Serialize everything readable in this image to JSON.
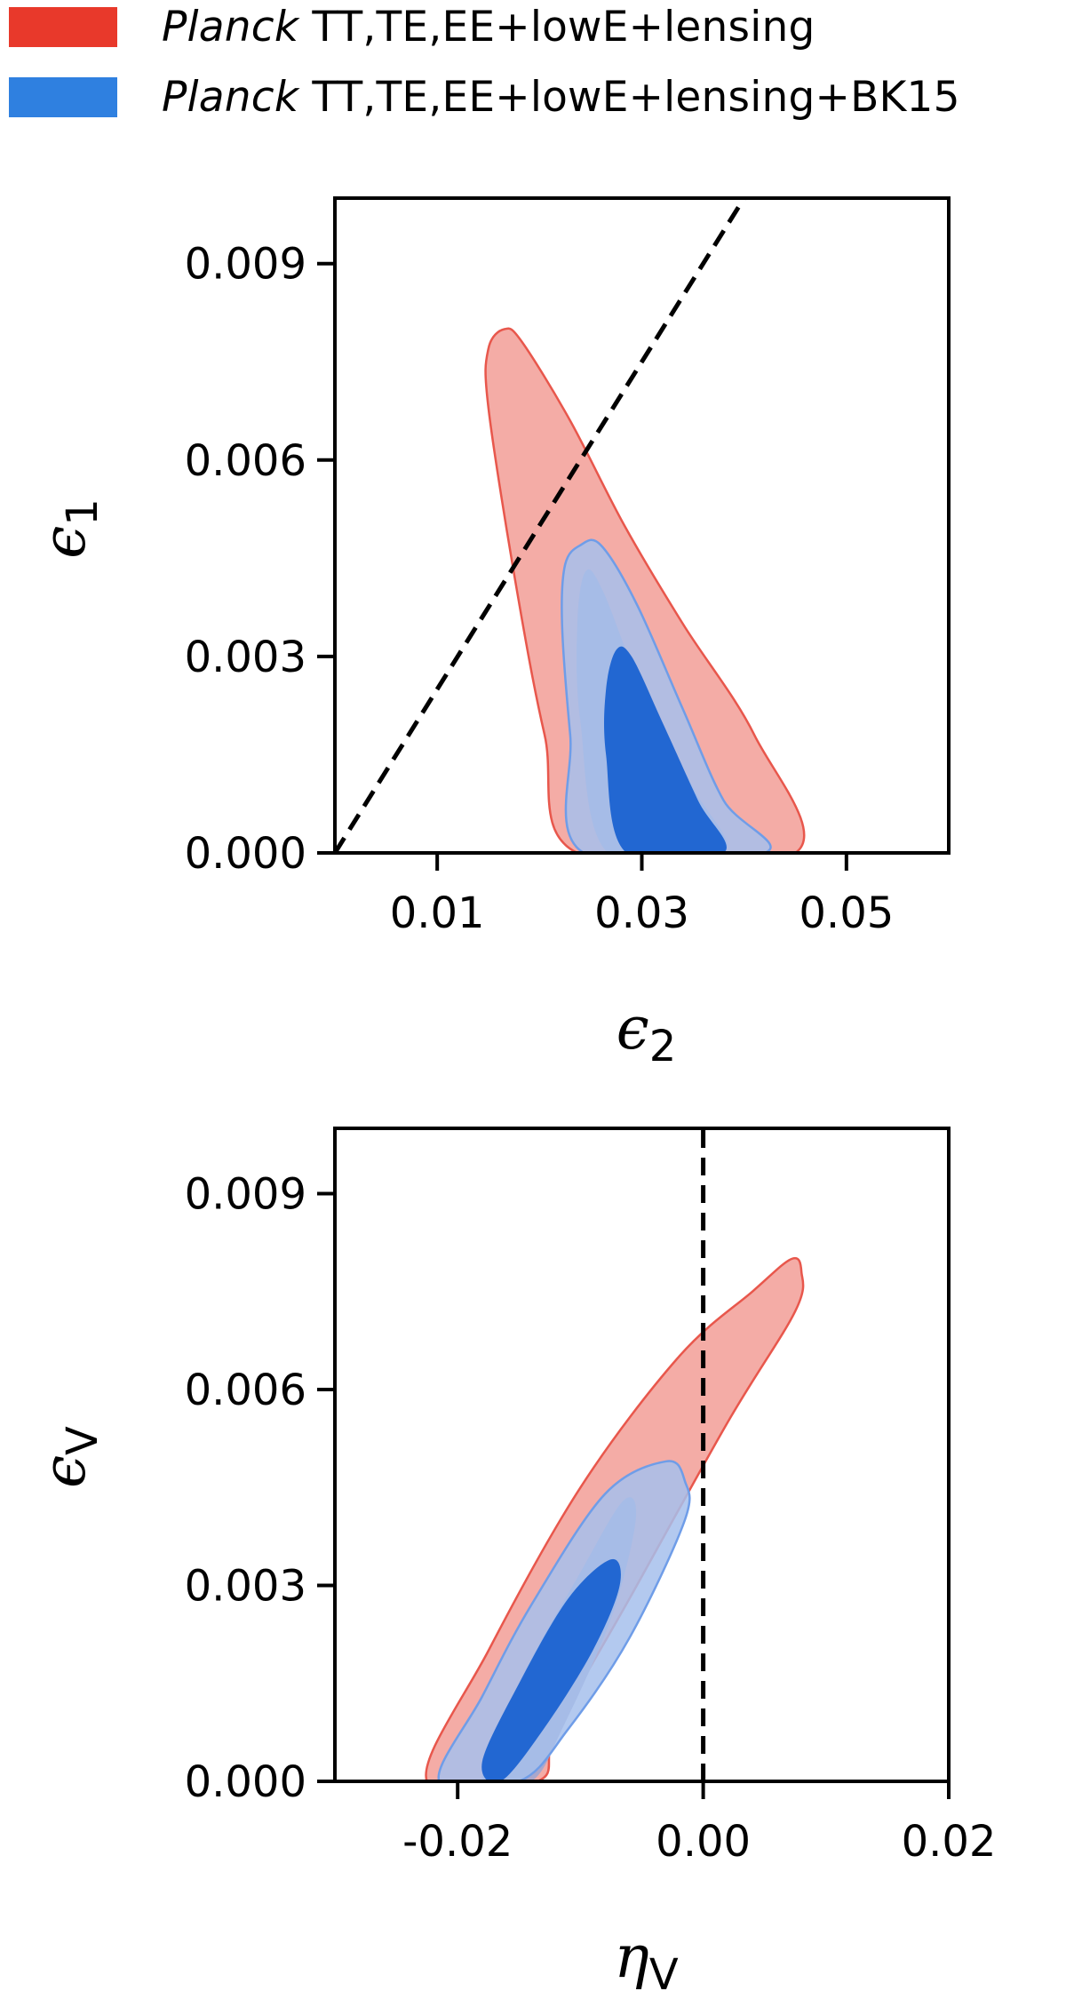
{
  "legend": {
    "items": [
      {
        "italic": "Planck",
        "text": " TT,TE,EE+lowE+lensing",
        "color": "#e8392b"
      },
      {
        "italic": "Planck",
        "text": " TT,TE,EE+lowE+lensing+BK15",
        "color": "#2f80e0"
      }
    ]
  },
  "colors": {
    "red_fill": "#f4aca6",
    "red_edge": "#e8574c",
    "blue_outer": "#a6c0ec",
    "blue_edge": "#6f9de8",
    "blue_inner": "#2267d2",
    "overlap": "#aaa7cb",
    "dashed": "#000000"
  },
  "chart_data": [
    {
      "type": "contour",
      "xlabel_main": "ϵ",
      "xlabel_sub": "2",
      "ylabel_main": "ϵ",
      "ylabel_sub": "1",
      "xlim": [
        0.0,
        0.06
      ],
      "ylim": [
        0.0,
        0.01
      ],
      "xticks": [
        0.01,
        0.03,
        0.05
      ],
      "xtick_labels": [
        "0.01",
        "0.03",
        "0.05"
      ],
      "yticks": [
        0.0,
        0.003,
        0.006,
        0.009
      ],
      "ytick_labels": [
        "0.000",
        "0.003",
        "0.006",
        "0.009"
      ],
      "reference_line": {
        "style": "dashed",
        "points": [
          [
            0.0,
            0.0
          ],
          [
            0.04,
            0.01
          ]
        ]
      },
      "series": [
        {
          "name": "Planck TT,TE,EE+lowE+lensing",
          "level": "95%",
          "points": [
            [
              0.0237,
              0.0
            ],
            [
              0.0205,
              0.0018
            ],
            [
              0.0178,
              0.004
            ],
            [
              0.015,
              0.0068
            ],
            [
              0.015,
              0.0077
            ],
            [
              0.0166,
              0.008
            ],
            [
              0.0183,
              0.0078
            ],
            [
              0.023,
              0.0066
            ],
            [
              0.0283,
              0.005
            ],
            [
              0.034,
              0.0035
            ],
            [
              0.041,
              0.0018
            ],
            [
              0.045,
              0.0
            ]
          ]
        },
        {
          "name": "Planck TT,TE,EE+lowE+lensing",
          "level": "68%",
          "points": [
            [
              0.0267,
              0.0
            ],
            [
              0.024,
              0.002
            ],
            [
              0.0237,
              0.0035
            ],
            [
              0.0245,
              0.0043
            ],
            [
              0.0262,
              0.004
            ],
            [
              0.03,
              0.0025
            ],
            [
              0.035,
              0.001
            ],
            [
              0.038,
              0.0
            ]
          ]
        },
        {
          "name": "Planck TT,TE,EE+lowE+lensing+BK15",
          "level": "95%",
          "points": [
            [
              0.0243,
              0.0
            ],
            [
              0.023,
              0.0018
            ],
            [
              0.0222,
              0.0035
            ],
            [
              0.0225,
              0.0044
            ],
            [
              0.024,
              0.0047
            ],
            [
              0.026,
              0.0047
            ],
            [
              0.0295,
              0.0038
            ],
            [
              0.034,
              0.0022
            ],
            [
              0.038,
              0.0008
            ],
            [
              0.042,
              0.0
            ]
          ]
        },
        {
          "name": "Planck TT,TE,EE+lowE+lensing+BK15",
          "level": "68%",
          "points": [
            [
              0.0285,
              0.0
            ],
            [
              0.0265,
              0.0015
            ],
            [
              0.0265,
              0.0025
            ],
            [
              0.0275,
              0.0031
            ],
            [
              0.029,
              0.003
            ],
            [
              0.032,
              0.002
            ],
            [
              0.0355,
              0.0008
            ],
            [
              0.038,
              0.0
            ]
          ]
        }
      ]
    },
    {
      "type": "contour",
      "xlabel_main": "η",
      "xlabel_sub": "V",
      "ylabel_main": "ϵ",
      "ylabel_sub": "V",
      "xlim": [
        -0.03,
        0.02
      ],
      "ylim": [
        0.0,
        0.01
      ],
      "xticks": [
        -0.02,
        0.0,
        0.02
      ],
      "xtick_labels": [
        "-0.02",
        "0.00",
        "0.02"
      ],
      "yticks": [
        0.0,
        0.003,
        0.006,
        0.009
      ],
      "ytick_labels": [
        "0.000",
        "0.003",
        "0.006",
        "0.009"
      ],
      "reference_line": {
        "style": "dashed",
        "points": [
          [
            0.0,
            0.0
          ],
          [
            0.0,
            0.01
          ]
        ]
      },
      "series": [
        {
          "name": "Planck TT,TE,EE+lowE+lensing",
          "level": "95%",
          "points": [
            [
              -0.0225,
              0.0
            ],
            [
              -0.0175,
              0.002
            ],
            [
              -0.01,
              0.0045
            ],
            [
              -0.002,
              0.0065
            ],
            [
              0.004,
              0.0075
            ],
            [
              0.0072,
              0.008
            ],
            [
              0.008,
              0.0078
            ],
            [
              0.0075,
              0.0072
            ],
            [
              0.002,
              0.0055
            ],
            [
              -0.006,
              0.0028
            ],
            [
              -0.012,
              0.0008
            ],
            [
              -0.0135,
              0.0
            ]
          ]
        },
        {
          "name": "Planck TT,TE,EE+lowE+lensing",
          "level": "68%",
          "points": [
            [
              -0.018,
              0.0
            ],
            [
              -0.015,
              0.0015
            ],
            [
              -0.01,
              0.0032
            ],
            [
              -0.0065,
              0.0043
            ],
            [
              -0.0055,
              0.004
            ],
            [
              -0.0075,
              0.0025
            ],
            [
              -0.0115,
              0.0008
            ],
            [
              -0.014,
              0.0
            ]
          ]
        },
        {
          "name": "Planck TT,TE,EE+lowE+lensing+BK15",
          "level": "95%",
          "points": [
            [
              -0.0215,
              0.0
            ],
            [
              -0.018,
              0.0013
            ],
            [
              -0.014,
              0.0027
            ],
            [
              -0.008,
              0.0044
            ],
            [
              -0.003,
              0.0049
            ],
            [
              -0.0015,
              0.0046
            ],
            [
              -0.0015,
              0.004
            ],
            [
              -0.006,
              0.0022
            ],
            [
              -0.011,
              0.0008
            ],
            [
              -0.015,
              0.0
            ]
          ]
        },
        {
          "name": "Planck TT,TE,EE+lowE+lensing+BK15",
          "level": "68%",
          "points": [
            [
              -0.018,
              0.0003
            ],
            [
              -0.015,
              0.0015
            ],
            [
              -0.011,
              0.0028
            ],
            [
              -0.0075,
              0.0034
            ],
            [
              -0.0068,
              0.003
            ],
            [
              -0.009,
              0.002
            ],
            [
              -0.013,
              0.0008
            ],
            [
              -0.0165,
              0.0
            ]
          ]
        }
      ]
    }
  ]
}
